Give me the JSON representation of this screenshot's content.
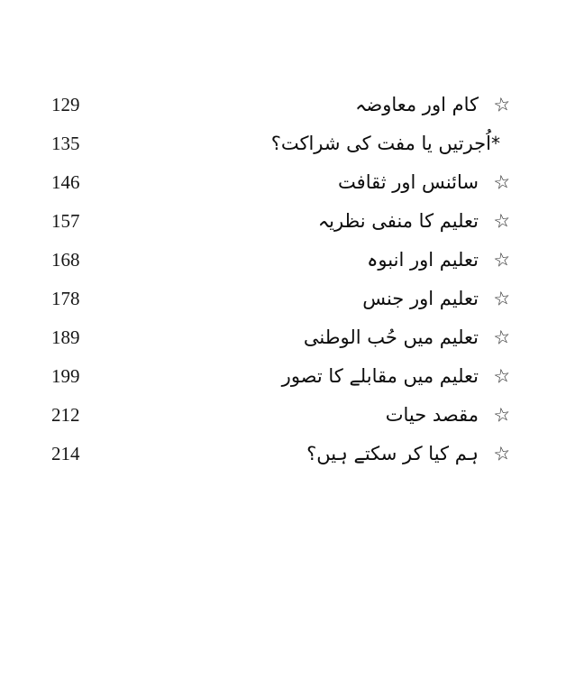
{
  "colors": {
    "background": "#ffffff",
    "ink": "#0d0d0d"
  },
  "glyphs": {
    "star": "☆",
    "asterisk": "*"
  },
  "toc": {
    "entries": [
      {
        "page": "129",
        "title": "کام اور معاوضہ",
        "prefix": "",
        "star": "☆"
      },
      {
        "page": "135",
        "title": "اُجرتیں یا مفت کی شراکت؟",
        "prefix": "*",
        "star": ""
      },
      {
        "page": "146",
        "title": "سائنس اور ثقافت",
        "prefix": "",
        "star": "☆"
      },
      {
        "page": "157",
        "title": "تعلیم کا منفی نظریہ",
        "prefix": "",
        "star": "☆"
      },
      {
        "page": "168",
        "title": "تعلیم اور انبوہ",
        "prefix": "",
        "star": "☆"
      },
      {
        "page": "178",
        "title": "تعلیم اور جنس",
        "prefix": "",
        "star": "☆"
      },
      {
        "page": "189",
        "title": "تعلیم میں حُب الوطنی",
        "prefix": "",
        "star": "☆"
      },
      {
        "page": "199",
        "title": "تعلیم میں مقابلے کا تصور",
        "prefix": "",
        "star": "☆"
      },
      {
        "page": "212",
        "title": "مقصد حیات",
        "prefix": "",
        "star": "☆"
      },
      {
        "page": "214",
        "title": "ہم کیا کر سکتے ہیں؟",
        "prefix": "",
        "star": "☆"
      }
    ]
  }
}
